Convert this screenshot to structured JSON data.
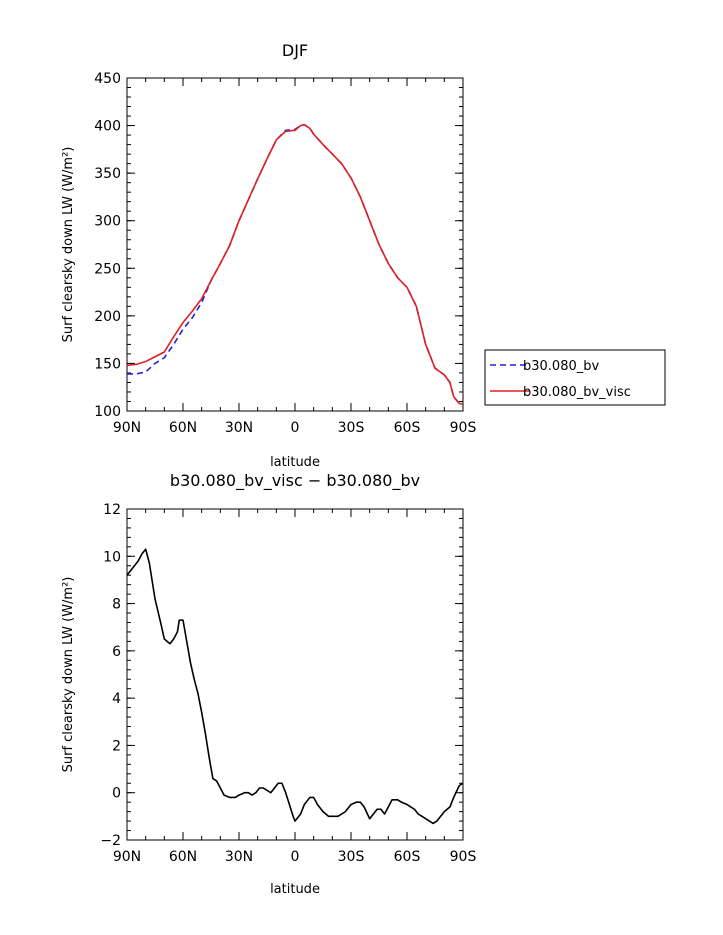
{
  "chart_data": [
    {
      "type": "line",
      "title": "DJF",
      "xlabel": "latitude",
      "ylabel": "Surf clearsky down LW (W/m²)",
      "xlim": [
        -90,
        90
      ],
      "ylim": [
        100,
        450
      ],
      "x_ticks": [
        -90,
        -60,
        -30,
        0,
        30,
        60,
        90
      ],
      "x_tick_labels": [
        "90N",
        "60N",
        "30N",
        "0",
        "30S",
        "60S",
        "90S"
      ],
      "y_ticks": [
        100,
        150,
        200,
        250,
        300,
        350,
        400,
        450
      ],
      "y_tick_labels": [
        "100",
        "150",
        "200",
        "250",
        "300",
        "350",
        "400",
        "450"
      ],
      "grid": false,
      "legend_position": "right",
      "series": [
        {
          "name": "b30.080_bv",
          "color": "#2020e0",
          "dash": "dashed",
          "x": [
            -90,
            -85,
            -80,
            -75,
            -70,
            -65,
            -60,
            -55,
            -50,
            -45,
            -40,
            -35,
            -30,
            -25,
            -20,
            -15,
            -10,
            -5,
            0,
            3,
            5,
            8,
            10,
            15,
            20,
            25,
            30,
            35,
            40,
            45,
            50,
            55,
            60,
            65,
            70,
            75,
            80,
            83,
            85,
            88,
            90
          ],
          "y": [
            139,
            139,
            141,
            150,
            156,
            170,
            186,
            198,
            214,
            237,
            255,
            274,
            300,
            322,
            344,
            365,
            385,
            395,
            396,
            400,
            401,
            397,
            391,
            380,
            370,
            360,
            345,
            325,
            300,
            275,
            255,
            240,
            230,
            210,
            170,
            145,
            138,
            130,
            115,
            108,
            107
          ]
        },
        {
          "name": "b30.080_bv_visc",
          "color": "#e02020",
          "dash": "solid",
          "x": [
            -90,
            -85,
            -80,
            -75,
            -70,
            -65,
            -60,
            -55,
            -50,
            -45,
            -40,
            -35,
            -30,
            -25,
            -20,
            -15,
            -10,
            -5,
            0,
            3,
            5,
            8,
            10,
            15,
            20,
            25,
            30,
            35,
            40,
            45,
            50,
            55,
            60,
            65,
            70,
            75,
            80,
            83,
            85,
            88,
            90
          ],
          "y": [
            148,
            149,
            152,
            157,
            162,
            178,
            193,
            205,
            218,
            237,
            255,
            274,
            300,
            322,
            344,
            365,
            385,
            394,
            395,
            400,
            401,
            397,
            391,
            380,
            370,
            360,
            345,
            325,
            300,
            275,
            255,
            240,
            230,
            210,
            170,
            145,
            138,
            130,
            115,
            108,
            107
          ]
        }
      ]
    },
    {
      "type": "line",
      "title": "b30.080_bv_visc − b30.080_bv",
      "xlabel": "latitude",
      "ylabel": "Surf clearsky down LW (W/m²)",
      "xlim": [
        -90,
        90
      ],
      "ylim": [
        -2,
        12
      ],
      "x_ticks": [
        -90,
        -60,
        -30,
        0,
        30,
        60,
        90
      ],
      "x_tick_labels": [
        "90N",
        "60N",
        "30N",
        "0",
        "30S",
        "60S",
        "90S"
      ],
      "y_ticks": [
        -2,
        0,
        2,
        4,
        6,
        8,
        10,
        12
      ],
      "y_tick_labels": [
        "−2",
        "0",
        "2",
        "4",
        "6",
        "8",
        "10",
        "12"
      ],
      "grid": false,
      "series": [
        {
          "color": "#000000",
          "dash": "solid",
          "x": [
            -90,
            -87,
            -84,
            -82,
            -80,
            -78,
            -75,
            -72,
            -70,
            -67,
            -65,
            -63,
            -62,
            -60,
            -58,
            -56,
            -54,
            -52,
            -50,
            -48,
            -46,
            -44,
            -42,
            -40,
            -38,
            -35,
            -32,
            -30,
            -27,
            -25,
            -23,
            -21,
            -19,
            -17,
            -15,
            -13,
            -11,
            -9,
            -7,
            -5,
            -3,
            -1,
            0,
            3,
            5,
            8,
            10,
            12,
            15,
            18,
            20,
            23,
            25,
            27,
            30,
            33,
            35,
            37,
            40,
            42,
            44,
            46,
            48,
            50,
            52,
            55,
            57,
            60,
            62,
            64,
            66,
            68,
            70,
            72,
            74,
            76,
            78,
            80,
            83,
            85,
            88,
            90
          ],
          "y": [
            9.2,
            9.5,
            9.8,
            10.1,
            10.3,
            9.7,
            8.2,
            7.2,
            6.5,
            6.3,
            6.5,
            6.8,
            7.3,
            7.3,
            6.4,
            5.5,
            4.8,
            4.2,
            3.4,
            2.5,
            1.5,
            0.6,
            0.5,
            0.2,
            -0.1,
            -0.2,
            -0.2,
            -0.1,
            0.0,
            0.0,
            -0.1,
            0.0,
            0.2,
            0.2,
            0.1,
            0.0,
            0.2,
            0.4,
            0.4,
            0.0,
            -0.5,
            -1.0,
            -1.2,
            -0.9,
            -0.5,
            -0.2,
            -0.2,
            -0.5,
            -0.8,
            -1.0,
            -1.0,
            -1.0,
            -0.9,
            -0.8,
            -0.5,
            -0.4,
            -0.4,
            -0.6,
            -1.1,
            -0.9,
            -0.7,
            -0.7,
            -0.9,
            -0.6,
            -0.3,
            -0.3,
            -0.4,
            -0.5,
            -0.6,
            -0.7,
            -0.9,
            -1.0,
            -1.1,
            -1.2,
            -1.3,
            -1.2,
            -1.0,
            -0.8,
            -0.6,
            -0.2,
            0.3,
            0.4
          ]
        }
      ]
    }
  ]
}
